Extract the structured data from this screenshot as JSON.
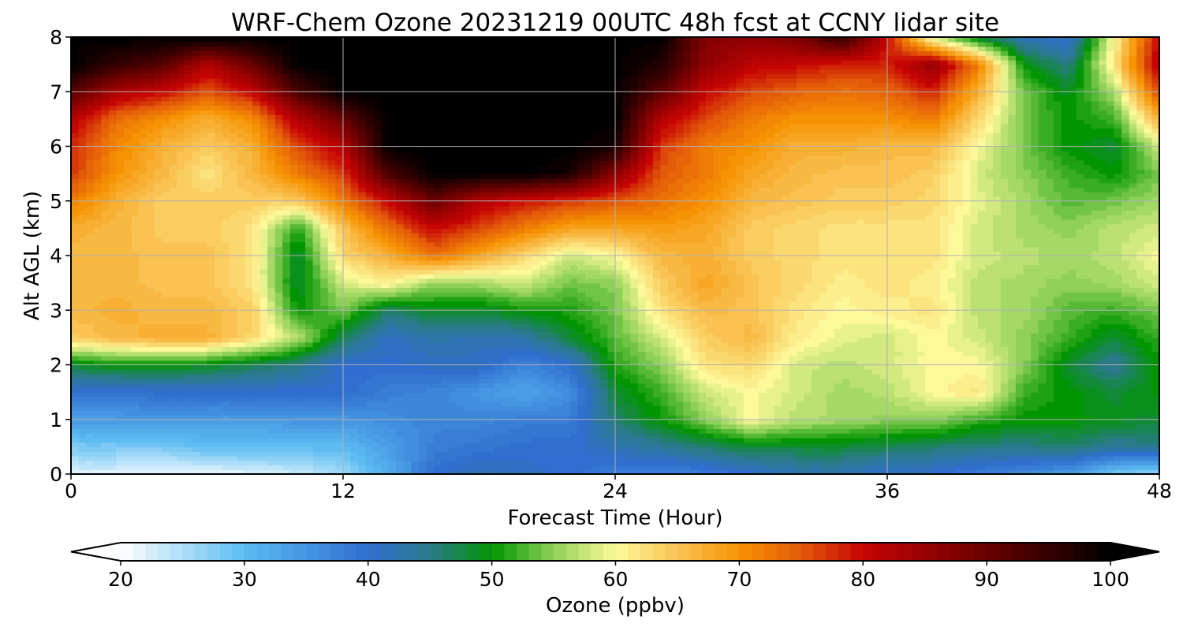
{
  "chart_data": {
    "type": "heatmap",
    "title": "WRF-Chem Ozone  20231219 00UTC 48h fcst at CCNY lidar site",
    "xlabel": "Forecast Time (Hour)",
    "ylabel": "Alt AGL (km)",
    "xlim": [
      0,
      48
    ],
    "ylim": [
      0,
      8
    ],
    "x_ticks": [
      0,
      12,
      24,
      36,
      48
    ],
    "y_ticks": [
      0,
      1,
      2,
      3,
      4,
      5,
      6,
      7,
      8
    ],
    "grid": true,
    "colorbar": {
      "label": "Ozone  (ppbv)",
      "min": 20,
      "max": 100,
      "ticks": [
        20,
        30,
        40,
        50,
        60,
        70,
        80,
        90,
        100
      ],
      "extend": "both",
      "orientation": "horizontal",
      "stops": [
        {
          "v": 20,
          "c": "#ffffff"
        },
        {
          "v": 30,
          "c": "#5cbcf2"
        },
        {
          "v": 40,
          "c": "#2f6fd0"
        },
        {
          "v": 45,
          "c": "#2a7a8a"
        },
        {
          "v": 50,
          "c": "#029502"
        },
        {
          "v": 55,
          "c": "#8ed05a"
        },
        {
          "v": 60,
          "c": "#fdf99a"
        },
        {
          "v": 65,
          "c": "#f9c253"
        },
        {
          "v": 70,
          "c": "#f69303"
        },
        {
          "v": 75,
          "c": "#e35a09"
        },
        {
          "v": 80,
          "c": "#c60404"
        },
        {
          "v": 90,
          "c": "#6a0000"
        },
        {
          "v": 100,
          "c": "#000000"
        }
      ]
    },
    "x": [
      0,
      2,
      4,
      6,
      8,
      10,
      12,
      14,
      16,
      18,
      20,
      22,
      24,
      26,
      28,
      30,
      32,
      34,
      36,
      38,
      40,
      42,
      44,
      46,
      48
    ],
    "y": [
      0,
      0.5,
      1,
      1.5,
      2,
      2.5,
      3,
      3.5,
      4,
      4.5,
      5,
      5.5,
      6,
      6.5,
      7,
      7.5,
      8
    ],
    "z": [
      [
        22,
        22,
        21,
        21,
        22,
        23,
        26,
        32,
        40,
        42,
        41,
        40,
        38,
        37,
        38,
        40,
        42,
        42,
        40,
        40,
        38,
        36,
        34,
        28,
        26
      ],
      [
        28,
        28,
        28,
        30,
        30,
        30,
        30,
        34,
        38,
        39,
        40,
        40,
        42,
        44,
        46,
        48,
        48,
        48,
        47,
        46,
        45,
        45,
        46,
        44,
        45
      ],
      [
        34,
        34,
        35,
        34,
        34,
        35,
        35,
        36,
        37,
        37,
        38,
        38,
        46,
        50,
        55,
        60,
        57,
        56,
        55,
        55,
        52,
        50,
        50,
        49,
        48
      ],
      [
        40,
        39,
        40,
        40,
        40,
        40,
        40,
        38,
        37,
        35,
        33,
        36,
        48,
        52,
        58,
        60,
        58,
        56,
        57,
        60,
        62,
        52,
        50,
        48,
        50
      ],
      [
        48,
        50,
        50,
        49,
        47,
        45,
        40,
        40,
        41,
        41,
        37,
        40,
        51,
        55,
        62,
        63,
        58,
        57,
        58,
        60,
        60,
        55,
        48,
        44,
        50
      ],
      [
        64,
        66,
        67,
        67,
        63,
        57,
        47,
        41,
        43,
        42,
        43,
        48,
        53,
        58,
        64,
        66,
        61,
        59,
        58,
        60,
        58,
        55,
        52,
        48,
        52
      ],
      [
        66,
        67,
        66,
        66,
        64,
        50,
        54,
        46,
        49,
        48,
        50,
        51,
        54,
        62,
        66,
        65,
        62,
        60,
        61,
        62,
        57,
        56,
        53,
        52,
        54
      ],
      [
        66,
        66,
        65,
        65,
        62,
        48,
        58,
        61,
        55,
        56,
        58,
        54,
        55,
        64,
        68,
        65,
        63,
        61,
        62,
        61,
        57,
        56,
        55,
        56,
        58
      ],
      [
        66,
        66,
        65,
        65,
        62,
        48,
        63,
        67,
        73,
        68,
        63,
        58,
        60,
        66,
        67,
        64,
        63,
        62,
        62,
        62,
        58,
        57,
        56,
        57,
        60
      ],
      [
        67,
        66,
        64,
        64,
        62,
        51,
        65,
        73,
        80,
        76,
        72,
        68,
        68,
        69,
        68,
        64,
        63,
        62,
        62,
        62,
        58,
        56,
        55,
        57,
        58
      ],
      [
        72,
        67,
        64,
        64,
        64,
        64,
        72,
        80,
        90,
        82,
        79,
        77,
        75,
        73,
        70,
        66,
        65,
        64,
        64,
        63,
        59,
        56,
        53,
        54,
        56
      ],
      [
        77,
        70,
        66,
        62,
        66,
        72,
        77,
        93,
        100,
        100,
        100,
        98,
        86,
        75,
        72,
        68,
        66,
        65,
        65,
        64,
        58,
        55,
        52,
        50,
        54
      ],
      [
        78,
        71,
        67,
        64,
        67,
        76,
        82,
        100,
        100,
        100,
        100,
        100,
        98,
        77,
        72,
        70,
        67,
        67,
        66,
        66,
        60,
        54,
        50,
        48,
        58
      ],
      [
        82,
        73,
        70,
        67,
        70,
        82,
        90,
        100,
        100,
        100,
        100,
        100,
        100,
        82,
        76,
        72,
        70,
        70,
        70,
        72,
        63,
        54,
        50,
        52,
        67
      ],
      [
        92,
        83,
        80,
        75,
        80,
        93,
        100,
        100,
        100,
        100,
        100,
        100,
        100,
        91,
        80,
        76,
        74,
        73,
        74,
        78,
        67,
        54,
        49,
        56,
        76
      ],
      [
        100,
        95,
        92,
        82,
        90,
        100,
        100,
        100,
        100,
        100,
        100,
        100,
        100,
        97,
        86,
        81,
        80,
        78,
        78,
        86,
        72,
        50,
        45,
        62,
        82
      ],
      [
        100,
        100,
        100,
        100,
        100,
        100,
        100,
        100,
        100,
        100,
        100,
        100,
        100,
        100,
        87,
        86,
        88,
        96,
        80,
        58,
        48,
        42,
        40,
        60,
        80
      ]
    ]
  }
}
